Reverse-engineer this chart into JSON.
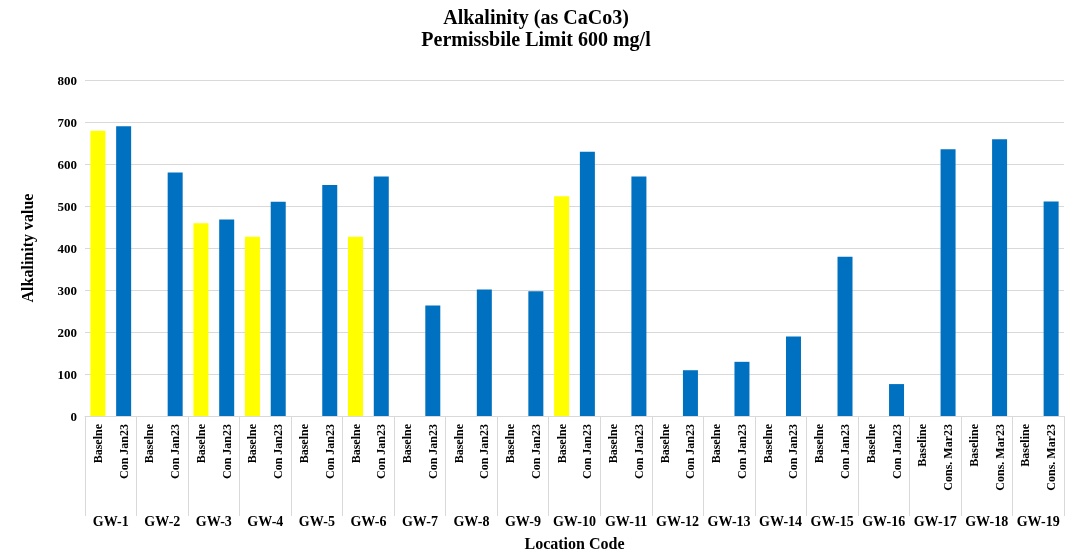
{
  "chart_data": {
    "type": "bar",
    "title": "Alkalinity (as CaCo3)",
    "subtitle": "Permissbile Limit 600 mg/l",
    "xlabel": "Location Code",
    "ylabel": "Alkalinity value",
    "categories": [
      "Baselne",
      "Con Jan23",
      "Baselne",
      "Con Jan23",
      "Baselne",
      "Con Jan23",
      "Baselne",
      "Con Jan23",
      "Baselne",
      "Con Jan23",
      "Baselne",
      "Con Jan23",
      "Baselne",
      "Con Jan23",
      "Baselne",
      "Con Jan23",
      "Baselne",
      "Con Jan23",
      "Baselne",
      "Con Jan23",
      "Baselne",
      "Con Jan23",
      "Baselne",
      "Con Jan23",
      "Baselne",
      "Con Jan23",
      "Baselne",
      "Con Jan23",
      "Baselne",
      "Con Jan23",
      "Baselne",
      "Con Jan23",
      "Baseline",
      "Cons. Mar23",
      "Baseline",
      "Cons. Mar23",
      "Baseline",
      "Cons. Mar23"
    ],
    "values": [
      679,
      690,
      null,
      580,
      459,
      468,
      427,
      510,
      null,
      550,
      427,
      570,
      null,
      263,
      null,
      301,
      null,
      297,
      523,
      629,
      null,
      570,
      null,
      109,
      null,
      129,
      null,
      189,
      null,
      379,
      null,
      76,
      null,
      635,
      null,
      659,
      null,
      511
    ],
    "colors": [
      "#ffff00",
      "#0070c0",
      "#ffff00",
      "#0070c0",
      "#ffff00",
      "#0070c0",
      "#ffff00",
      "#0070c0",
      "#ffff00",
      "#0070c0",
      "#ffff00",
      "#0070c0",
      "#ffff00",
      "#0070c0",
      "#ffff00",
      "#0070c0",
      "#ffff00",
      "#0070c0",
      "#ffff00",
      "#0070c0",
      "#ffff00",
      "#0070c0",
      "#ffff00",
      "#0070c0",
      "#ffff00",
      "#0070c0",
      "#ffff00",
      "#0070c0",
      "#ffff00",
      "#0070c0",
      "#ffff00",
      "#0070c0",
      "#ffff00",
      "#0070c0",
      "#ffff00",
      "#0070c0",
      "#ffff00",
      "#0070c0"
    ],
    "annotations": [
      "GW-1",
      "GW-2",
      "GW-3",
      "GW-4",
      "GW-5",
      "GW-6",
      "GW-7",
      "GW-8",
      "GW-9",
      "GW-10",
      "GW-11",
      "GW-12",
      "GW-13",
      "GW-14",
      "GW-15",
      "GW-16",
      "GW-17",
      "GW-18",
      "GW-19"
    ],
    "ylim": [
      0,
      800
    ],
    "yticks": [
      0,
      100,
      200,
      300,
      400,
      500,
      600,
      700,
      800
    ],
    "grid": "y"
  }
}
